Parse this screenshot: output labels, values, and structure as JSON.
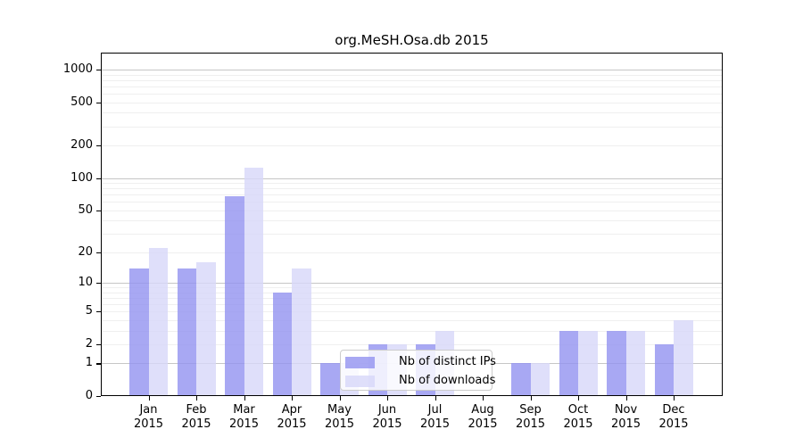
{
  "chart_data": {
    "type": "bar",
    "title": "org.MeSH.Osa.db 2015",
    "categories": [
      "Jan",
      "Feb",
      "Mar",
      "Apr",
      "May",
      "Jun",
      "Jul",
      "Aug",
      "Sep",
      "Oct",
      "Nov",
      "Dec"
    ],
    "category_year": "2015",
    "series": [
      {
        "name": "Nb of distinct IPs",
        "values": [
          14,
          14,
          68,
          8,
          1,
          2,
          2,
          0,
          1,
          3,
          3,
          2
        ],
        "color": "rgba(146,146,240,0.8)"
      },
      {
        "name": "Nb of downloads",
        "values": [
          22,
          16,
          125,
          14,
          1,
          2,
          3,
          0,
          1,
          3,
          3,
          4
        ],
        "color": "rgba(215,215,249,0.8)"
      }
    ],
    "y_axis": {
      "scale": "log10(1+value)",
      "ylim": [
        0,
        1000
      ],
      "tick_values": [
        0,
        1,
        2,
        5,
        10,
        20,
        50,
        100,
        200,
        500,
        1000
      ],
      "major_gridlines": [
        1,
        10,
        100,
        1000
      ],
      "minor_gridlines": [
        2,
        3,
        4,
        5,
        6,
        7,
        8,
        9,
        20,
        30,
        40,
        50,
        60,
        70,
        80,
        90,
        200,
        300,
        400,
        500,
        600,
        700,
        800,
        900
      ],
      "major_grid_color": "#c6c6c6",
      "minor_grid_color": "#efefef"
    },
    "legend": {
      "position": "bottom-center",
      "entries": [
        "Nb of distinct IPs",
        "Nb of downloads"
      ]
    },
    "grid": true
  }
}
